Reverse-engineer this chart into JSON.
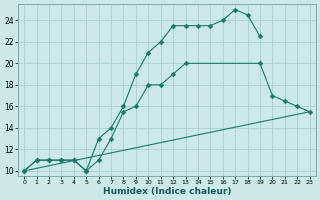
{
  "xlabel": "Humidex (Indice chaleur)",
  "background_color": "#cce8e8",
  "line_color": "#1a7a6a",
  "grid_color": "#aacfcf",
  "xlim": [
    -0.5,
    23.5
  ],
  "ylim": [
    9.5,
    25.5
  ],
  "xticks": [
    0,
    1,
    2,
    3,
    4,
    5,
    6,
    7,
    8,
    9,
    10,
    11,
    12,
    13,
    14,
    15,
    16,
    17,
    18,
    19,
    20,
    21,
    22,
    23
  ],
  "yticks": [
    10,
    12,
    14,
    16,
    18,
    20,
    22,
    24
  ],
  "line1_x": [
    0,
    1,
    2,
    3,
    4,
    5,
    6,
    7,
    8,
    9,
    10,
    11,
    12,
    13,
    14,
    15,
    16,
    17,
    18,
    19,
    20,
    21,
    22,
    23
  ],
  "line1_y": [
    10,
    11,
    11,
    11,
    11,
    10,
    13,
    14,
    16,
    19,
    21,
    22,
    23.5,
    23.5,
    23.5,
    23.5,
    24,
    25,
    24.5,
    22.5,
    null,
    null,
    null,
    null
  ],
  "line2_x": [
    0,
    1,
    2,
    3,
    4,
    5,
    6,
    7,
    8,
    9,
    10,
    11,
    12,
    13,
    14,
    15,
    16,
    17,
    18,
    19,
    20,
    21,
    22,
    23
  ],
  "line2_y": [
    10,
    11,
    11,
    11,
    11,
    10,
    11,
    13,
    15.5,
    16,
    18,
    18,
    19,
    20,
    null,
    null,
    null,
    null,
    null,
    20,
    17,
    16.5,
    16,
    15.5
  ],
  "line3_x": [
    0,
    23
  ],
  "line3_y": [
    10,
    15.5
  ],
  "marker_x1": [
    0,
    1,
    2,
    3,
    4,
    5,
    6,
    7,
    8,
    9,
    10,
    11,
    12,
    13,
    14,
    15,
    16,
    17,
    18,
    19
  ],
  "marker_y1": [
    10,
    11,
    11,
    11,
    11,
    10,
    13,
    14,
    16,
    19,
    21,
    22,
    23.5,
    23.5,
    23.5,
    23.5,
    24,
    25,
    24.5,
    22.5
  ],
  "marker_x2": [
    0,
    1,
    2,
    3,
    4,
    5,
    6,
    7,
    8,
    9,
    10,
    11,
    12,
    13,
    19,
    20,
    21,
    22,
    23
  ],
  "marker_y2": [
    10,
    11,
    11,
    11,
    11,
    10,
    11,
    13,
    15.5,
    16,
    18,
    18,
    19,
    20,
    20,
    17,
    16.5,
    16,
    15.5
  ]
}
